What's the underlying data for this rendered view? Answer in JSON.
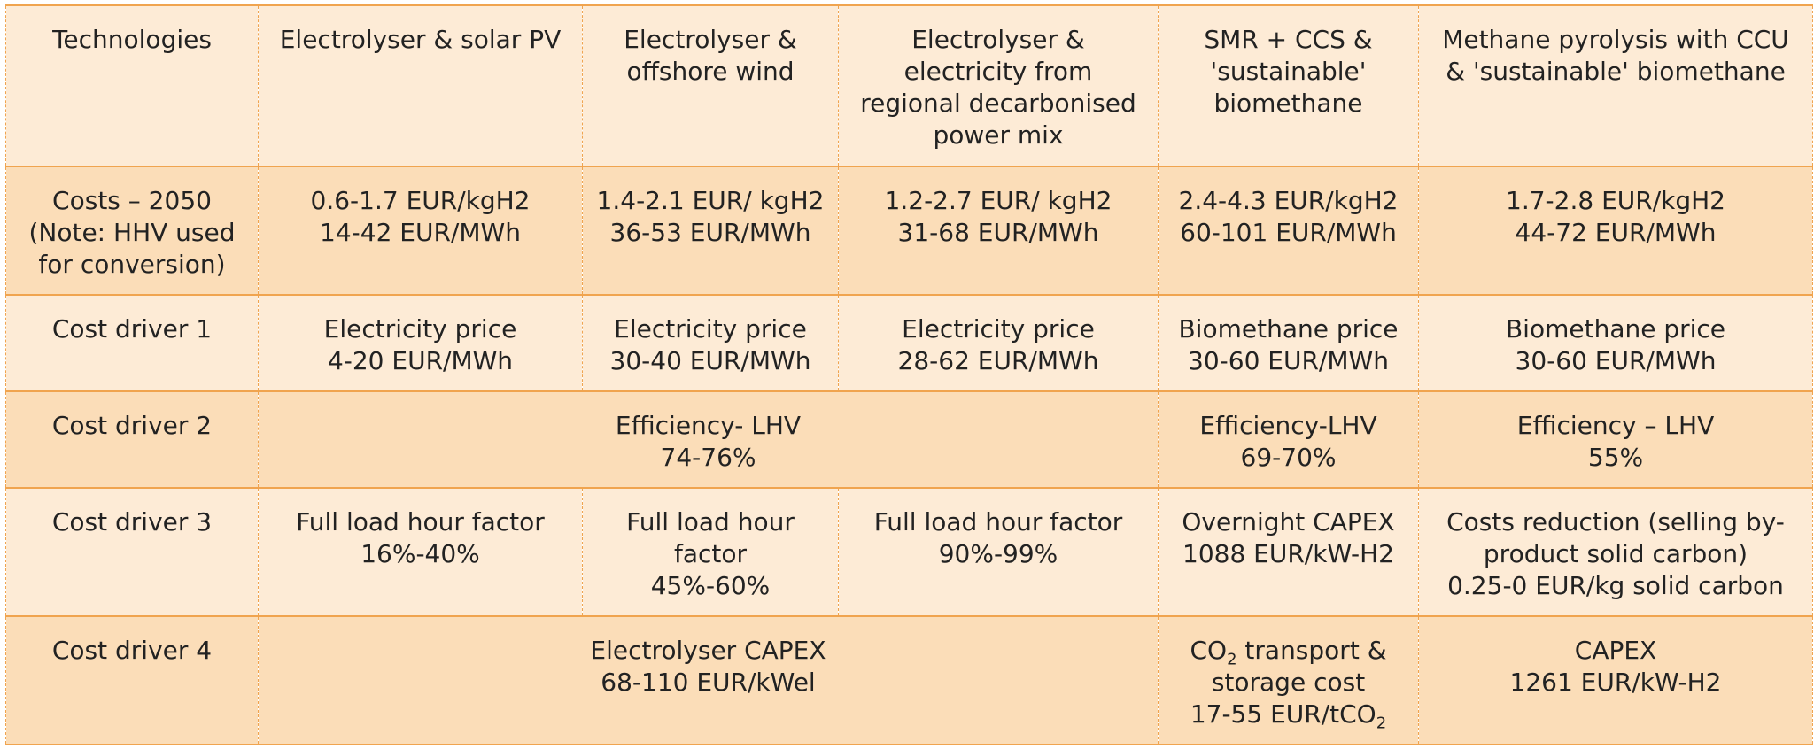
{
  "table": {
    "header": [
      "Technologies",
      "Electrolyser & solar PV",
      "Electrolyser &\noffshore wind",
      "Electrolyser &\nelectricity   from\nregional decarbonised\npower mix",
      "SMR + CCS &\n'sustainable'\nbiomethane",
      "Methane pyrolysis with CCU\n&  'sustainable' biomethane"
    ],
    "costs_2050": {
      "label": "Costs – 2050\n(Note: HHV used\nfor conversion)",
      "solar_pv": "0.6-1.7 EUR/kgH2\n14-42 EUR/MWh",
      "offshore_wind": "1.4-2.1 EUR/ kgH2\n36-53 EUR/MWh",
      "regional_mix": "1.2-2.7 EUR/ kgH2\n31-68 EUR/MWh",
      "smr_ccs": "2.4-4.3 EUR/kgH2\n60-101 EUR/MWh",
      "pyrolysis": "1.7-2.8 EUR/kgH2\n44-72 EUR/MWh"
    },
    "cost_driver_1": {
      "label": "Cost driver 1",
      "solar_pv": "Electricity price\n4-20 EUR/MWh",
      "offshore_wind": "Electricity price\n30-40 EUR/MWh",
      "regional_mix": "Electricity price\n28-62 EUR/MWh",
      "smr_ccs": "Biomethane price\n30-60 EUR/MWh",
      "pyrolysis": "Biomethane price\n30-60 EUR/MWh"
    },
    "cost_driver_2": {
      "label": "Cost driver 2",
      "electrolysers": "Efficiency- LHV\n74-76%",
      "smr_ccs": "Efficiency-LHV\n69-70%",
      "pyrolysis": "Efficiency – LHV\n55%"
    },
    "cost_driver_3": {
      "label": "Cost driver 3",
      "solar_pv": "Full load hour factor\n16%-40%",
      "offshore_wind": "Full load hour\nfactor\n45%-60%",
      "regional_mix": "Full load hour factor\n90%-99%",
      "smr_ccs": "Overnight CAPEX\n1088 EUR/kW-H2",
      "pyrolysis": "Costs reduction (selling by-\nproduct solid carbon)\n0.25-0 EUR/kg solid carbon"
    },
    "cost_driver_4": {
      "label": "Cost driver 4",
      "electrolysers": "Electrolyser CAPEX\n68-110 EUR/kWel",
      "smr_ccs_line1_a": "CO",
      "smr_ccs_line1_sub": "2",
      "smr_ccs_line1_b": " transport &",
      "smr_ccs_line2": "storage cost",
      "smr_ccs_line3_a": "17-55 EUR/tCO",
      "smr_ccs_line3_sub": "2",
      "pyrolysis": "CAPEX\n1261 EUR/kW-H2"
    }
  }
}
